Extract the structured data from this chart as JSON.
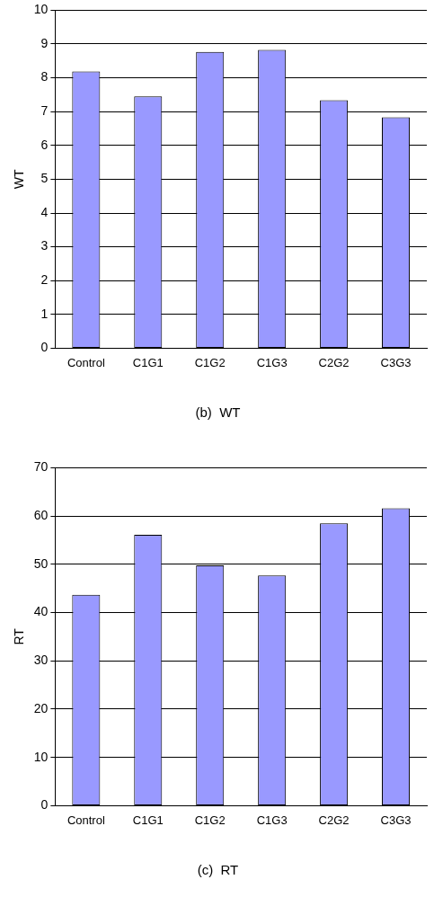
{
  "chart_data": [
    {
      "type": "bar",
      "title": "(b)  WT",
      "ylabel": "WT",
      "categories": [
        "Control",
        "C1G1",
        "C1G2",
        "C1G3",
        "C2G2",
        "C3G3"
      ],
      "values": [
        8.19,
        7.45,
        8.77,
        8.83,
        7.34,
        6.83
      ],
      "color": "#9999ff",
      "ylim": [
        0,
        10
      ],
      "yticks": [
        0,
        1,
        2,
        3,
        4,
        5,
        6,
        7,
        8,
        9,
        10
      ],
      "grid": "y"
    },
    {
      "type": "bar",
      "title": "(c)  RT",
      "ylabel": "RT",
      "categories": [
        "Control",
        "C1G1",
        "C1G2",
        "C1G3",
        "C2G2",
        "C3G3"
      ],
      "values": [
        43.7,
        56.1,
        49.8,
        47.7,
        58.5,
        61.6
      ],
      "color": "#9999ff",
      "ylim": [
        0,
        70
      ],
      "yticks": [
        0,
        10,
        20,
        30,
        40,
        50,
        60,
        70
      ],
      "grid": "y"
    }
  ]
}
